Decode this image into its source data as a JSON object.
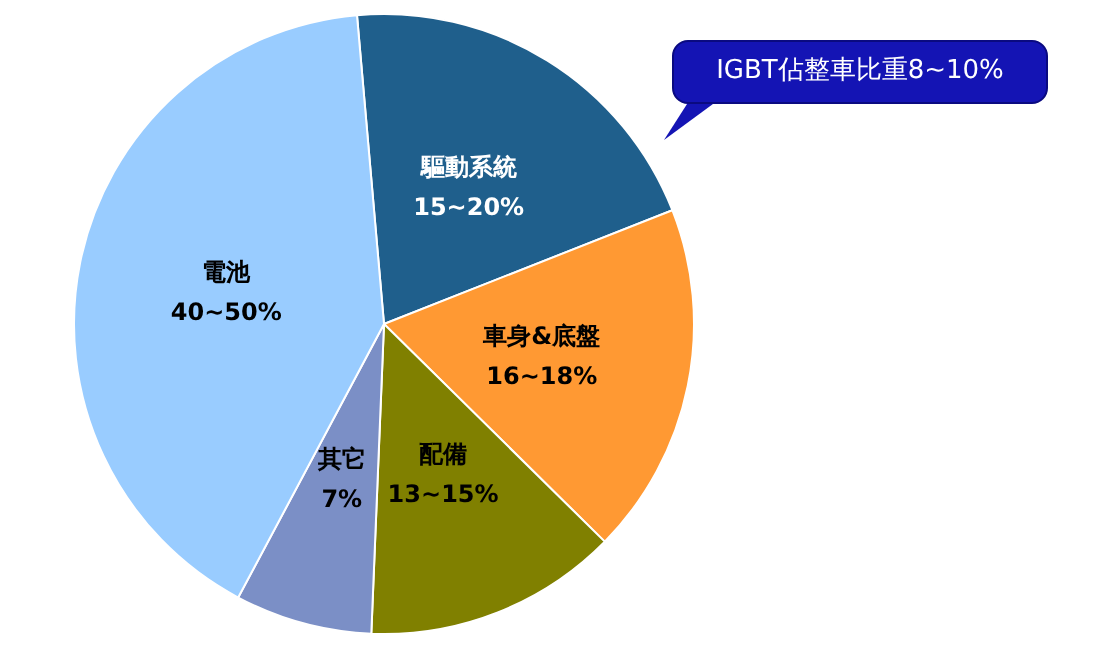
{
  "chart_data": {
    "type": "pie",
    "categories": [
      "驅動系統",
      "車身&底盤",
      "配備",
      "其它",
      "電池"
    ],
    "values": [
      20,
      18,
      13,
      7,
      40
    ],
    "value_labels": [
      "15~20%",
      "16~18%",
      "13~15%",
      "7%",
      "40~50%"
    ],
    "colors": [
      "#1f5f8c",
      "#ff9933",
      "#808000",
      "#7b8fc6",
      "#99ccff"
    ],
    "annotations": [
      "IGBT佔整車比重8~10%"
    ],
    "legend": false
  }
}
